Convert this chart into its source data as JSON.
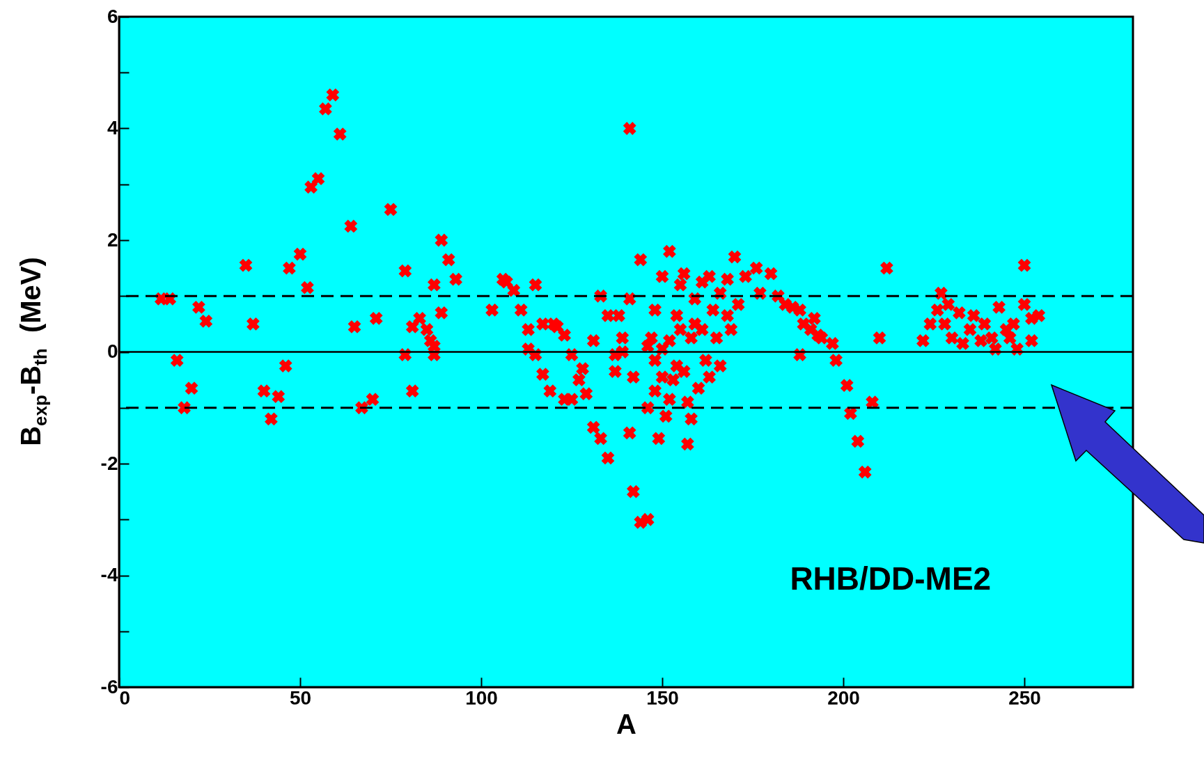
{
  "chart_data": {
    "type": "scatter",
    "xlabel": "A",
    "ylabel": "B$_{exp}$-B$_{th}$  (MeV)",
    "xlim": [
      0,
      280
    ],
    "xticks": [
      0,
      50,
      100,
      150,
      200,
      250
    ],
    "ylim": [
      -6,
      6
    ],
    "yticks": [
      -6,
      {
        "value": -5,
        "label": null
      },
      -4,
      {
        "value": -3,
        "label": null
      },
      -2,
      {
        "value": -1,
        "label": null
      },
      0,
      {
        "value": 1,
        "label": null
      },
      2,
      {
        "value": 3,
        "label": null
      },
      4,
      {
        "value": 5,
        "label": null
      },
      6
    ],
    "marker": "cross",
    "grid": false,
    "annotations": [
      "RHB/DD-ME2"
    ],
    "ref_lines": [
      {
        "axis": "y",
        "value": 0,
        "line_style": "solid",
        "color": "#000000"
      },
      {
        "axis": "y",
        "value": 1,
        "line_style": "dashed",
        "color": "#000000"
      },
      {
        "axis": "y",
        "value": -1,
        "line_style": "dashed",
        "color": "#000000"
      }
    ],
    "series": [
      {
        "color": "#ff0000",
        "x": [
          11.6,
          14,
          16,
          18,
          20,
          22,
          24,
          35,
          37,
          40,
          42,
          44,
          46,
          47,
          50,
          52,
          53,
          55,
          57,
          59,
          61,
          64,
          65,
          67,
          70,
          71,
          75,
          79,
          79,
          81,
          81,
          83,
          85,
          86,
          87,
          87,
          87,
          89,
          89,
          91,
          93,
          103,
          106,
          107,
          109,
          111,
          113,
          113,
          115,
          115,
          117,
          117,
          119,
          120,
          121,
          123,
          123,
          125,
          125,
          127,
          128,
          129,
          131,
          131,
          133,
          133,
          135,
          135,
          137,
          137,
          138,
          139,
          139,
          141,
          141,
          141,
          142,
          142,
          144,
          144,
          146,
          146,
          146,
          147,
          148,
          148,
          149,
          148,
          150,
          150,
          150,
          151,
          152,
          152,
          152,
          153,
          154,
          154,
          155,
          155,
          156,
          156,
          157,
          157,
          158,
          158,
          159,
          159,
          160,
          161,
          161,
          162,
          163,
          163,
          164,
          165,
          166,
          166,
          168,
          168,
          169,
          170,
          171,
          173,
          176,
          177,
          180,
          182,
          184,
          186,
          188,
          188,
          189,
          191,
          192,
          193,
          194,
          197,
          198,
          201,
          202,
          204,
          206,
          208,
          210,
          212,
          222,
          224,
          226,
          227,
          228,
          229,
          230,
          232,
          233,
          235,
          236,
          238,
          239,
          241,
          242,
          243,
          245,
          246,
          247,
          248,
          250,
          250,
          252,
          252,
          254
        ],
        "values": [
          0.95,
          0.95,
          -0.15,
          -1.0,
          -0.65,
          0.8,
          0.55,
          1.55,
          0.5,
          -0.7,
          -1.2,
          -0.8,
          -0.25,
          1.5,
          1.75,
          1.15,
          2.95,
          3.1,
          4.35,
          4.6,
          3.9,
          2.25,
          0.45,
          -1.0,
          -0.85,
          0.6,
          2.55,
          1.45,
          -0.05,
          0.45,
          -0.7,
          0.6,
          0.4,
          0.2,
          0.1,
          -0.05,
          1.2,
          2.0,
          0.7,
          1.65,
          1.3,
          0.75,
          1.3,
          1.25,
          1.1,
          0.75,
          0.4,
          0.05,
          -0.05,
          1.2,
          -0.4,
          0.5,
          -0.7,
          0.5,
          0.45,
          0.3,
          -0.85,
          -0.85,
          -0.05,
          -0.5,
          -0.3,
          -0.75,
          0.2,
          -1.35,
          -1.55,
          1.0,
          0.65,
          -1.9,
          -0.35,
          -0.05,
          0.65,
          0.25,
          0,
          4.0,
          0.95,
          -1.45,
          -0.45,
          -2.5,
          1.65,
          -3.05,
          -3.0,
          0.1,
          -1.0,
          0.25,
          -0.15,
          -0.7,
          -1.55,
          0.75,
          -0.45,
          0.05,
          1.35,
          -1.15,
          1.8,
          -0.85,
          0.2,
          -0.5,
          0.65,
          -0.25,
          1.2,
          0.4,
          -0.35,
          1.4,
          -0.9,
          -1.65,
          0.25,
          -1.2,
          0.95,
          0.5,
          -0.65,
          0.4,
          1.25,
          -0.15,
          1.35,
          -0.45,
          0.75,
          0.25,
          -0.25,
          1.05,
          0.65,
          1.3,
          0.4,
          1.7,
          0.85,
          1.35,
          1.5,
          1.05,
          1.4,
          1.0,
          0.85,
          0.8,
          0.75,
          -0.05,
          0.5,
          0.4,
          0.6,
          0.3,
          0.25,
          0.15,
          -0.15,
          -0.6,
          -1.1,
          -1.6,
          -2.15,
          -0.9,
          0.25,
          1.5,
          0.2,
          0.5,
          0.75,
          1.05,
          0.5,
          0.85,
          0.25,
          0.7,
          0.15,
          0.4,
          0.65,
          0.2,
          0.5,
          0.25,
          0.05,
          0.8,
          0.4,
          0.25,
          0.5,
          0.05,
          1.55,
          0.85,
          0.6,
          0.2,
          0.65
        ]
      }
    ]
  }
}
